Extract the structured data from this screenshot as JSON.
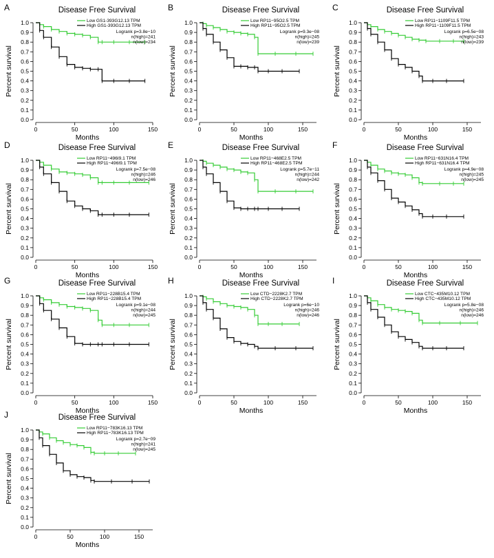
{
  "chart_data": [
    {
      "panel": "A",
      "type": "line",
      "title": "Disease Free Survival",
      "xlabel": "Months",
      "ylabel": "Percent survival",
      "xlim": [
        0,
        150
      ],
      "xticks": [
        0,
        50,
        100,
        150
      ],
      "ylim": [
        0,
        1
      ],
      "yticks": [
        0.0,
        0.1,
        0.2,
        0.3,
        0.4,
        0.5,
        0.6,
        0.7,
        0.8,
        0.9,
        1.0
      ],
      "series": [
        {
          "name": "Low GS1-393G12.13 TPM",
          "color": "#33cc33",
          "x": [
            0,
            5,
            10,
            20,
            30,
            40,
            50,
            60,
            70,
            80,
            85,
            100,
            120,
            140
          ],
          "y": [
            1.0,
            0.98,
            0.96,
            0.93,
            0.91,
            0.89,
            0.88,
            0.87,
            0.85,
            0.8,
            0.8,
            0.8,
            0.8,
            0.8
          ]
        },
        {
          "name": "High GS1-393G12.13 TPM",
          "color": "#000000",
          "x": [
            0,
            5,
            10,
            20,
            30,
            40,
            50,
            60,
            70,
            80,
            85,
            100,
            120,
            140
          ],
          "y": [
            1.0,
            0.92,
            0.85,
            0.75,
            0.65,
            0.57,
            0.54,
            0.53,
            0.52,
            0.52,
            0.4,
            0.4,
            0.4,
            0.4
          ]
        }
      ],
      "annotations": [
        "Logrank p=3.8e−10",
        "n(high)=241",
        "n(low)=234"
      ]
    },
    {
      "panel": "B",
      "type": "line",
      "title": "Disease Free Survival",
      "xlabel": "Months",
      "ylabel": "Percent survival",
      "xlim": [
        0,
        170
      ],
      "xticks": [
        0,
        50,
        100,
        150
      ],
      "ylim": [
        0,
        1
      ],
      "yticks": [
        0.0,
        0.1,
        0.2,
        0.3,
        0.4,
        0.5,
        0.6,
        0.7,
        0.8,
        0.9,
        1.0
      ],
      "series": [
        {
          "name": "Low RP11−95O2.5 TPM",
          "color": "#33cc33",
          "x": [
            0,
            5,
            10,
            20,
            30,
            40,
            50,
            60,
            70,
            80,
            85,
            110,
            140,
            165
          ],
          "y": [
            1.0,
            0.99,
            0.97,
            0.95,
            0.93,
            0.91,
            0.9,
            0.89,
            0.88,
            0.85,
            0.68,
            0.68,
            0.68,
            0.68
          ]
        },
        {
          "name": "High RP11−95O2.5 TPM",
          "color": "#000000",
          "x": [
            0,
            5,
            10,
            20,
            30,
            40,
            50,
            60,
            70,
            80,
            85,
            100,
            120,
            145
          ],
          "y": [
            1.0,
            0.94,
            0.88,
            0.8,
            0.72,
            0.64,
            0.55,
            0.55,
            0.54,
            0.54,
            0.5,
            0.5,
            0.5,
            0.5
          ]
        }
      ],
      "annotations": [
        "Logrank p=9.3e−08",
        "n(high)=245",
        "n(low)=239"
      ]
    },
    {
      "panel": "C",
      "type": "line",
      "title": "Disease Free Survival",
      "xlabel": "Months",
      "ylabel": "Percent survival",
      "xlim": [
        0,
        170
      ],
      "xticks": [
        0,
        50,
        100,
        150
      ],
      "ylim": [
        0,
        1
      ],
      "yticks": [
        0.0,
        0.1,
        0.2,
        0.3,
        0.4,
        0.5,
        0.6,
        0.7,
        0.8,
        0.9,
        1.0
      ],
      "series": [
        {
          "name": "Low RP11−1109F11.5 TPM",
          "color": "#33cc33",
          "x": [
            0,
            5,
            10,
            20,
            30,
            40,
            50,
            60,
            70,
            80,
            90,
            110,
            130,
            145
          ],
          "y": [
            1.0,
            0.98,
            0.96,
            0.93,
            0.91,
            0.89,
            0.87,
            0.85,
            0.83,
            0.82,
            0.81,
            0.81,
            0.81,
            0.81
          ]
        },
        {
          "name": "High RP11−1109F11.5 TPM",
          "color": "#000000",
          "x": [
            0,
            5,
            10,
            20,
            30,
            40,
            50,
            60,
            70,
            80,
            85,
            100,
            120,
            145
          ],
          "y": [
            1.0,
            0.94,
            0.88,
            0.8,
            0.72,
            0.63,
            0.57,
            0.54,
            0.5,
            0.45,
            0.4,
            0.4,
            0.4,
            0.4
          ]
        }
      ],
      "annotations": [
        "Logrank p=6.5e−08",
        "n(high)=243",
        "n(low)=239"
      ]
    },
    {
      "panel": "D",
      "type": "line",
      "title": "Disease Free Survival",
      "xlabel": "Months",
      "ylabel": "Percent survival",
      "xlim": [
        0,
        150
      ],
      "xticks": [
        0,
        50,
        100,
        150
      ],
      "ylim": [
        0,
        1
      ],
      "yticks": [
        0.0,
        0.1,
        0.2,
        0.3,
        0.4,
        0.5,
        0.6,
        0.7,
        0.8,
        0.9,
        1.0
      ],
      "series": [
        {
          "name": "Low RP11−496I9.1 TPM",
          "color": "#33cc33",
          "x": [
            0,
            5,
            10,
            20,
            30,
            40,
            50,
            60,
            70,
            80,
            85,
            100,
            120,
            145
          ],
          "y": [
            1.0,
            0.98,
            0.95,
            0.91,
            0.88,
            0.87,
            0.86,
            0.85,
            0.82,
            0.77,
            0.77,
            0.77,
            0.77,
            0.77
          ]
        },
        {
          "name": "High RP11−496I9.1 TPM",
          "color": "#000000",
          "x": [
            0,
            5,
            10,
            20,
            30,
            40,
            50,
            60,
            70,
            80,
            85,
            100,
            120,
            145
          ],
          "y": [
            1.0,
            0.93,
            0.86,
            0.77,
            0.68,
            0.58,
            0.53,
            0.5,
            0.48,
            0.44,
            0.44,
            0.44,
            0.44,
            0.44
          ]
        }
      ],
      "annotations": [
        "Logrank p=7.5e−08",
        "n(high)=246",
        "n(low)=246"
      ]
    },
    {
      "panel": "E",
      "type": "line",
      "title": "Disease Free Survival",
      "xlabel": "Months",
      "ylabel": "Percent survival",
      "xlim": [
        0,
        170
      ],
      "xticks": [
        0,
        50,
        100,
        150
      ],
      "ylim": [
        0,
        1
      ],
      "yticks": [
        0.0,
        0.1,
        0.2,
        0.3,
        0.4,
        0.5,
        0.6,
        0.7,
        0.8,
        0.9,
        1.0
      ],
      "series": [
        {
          "name": "Low RP11−468E2.5 TPM",
          "color": "#33cc33",
          "x": [
            0,
            5,
            10,
            20,
            30,
            40,
            50,
            60,
            70,
            80,
            85,
            110,
            140,
            165
          ],
          "y": [
            1.0,
            0.99,
            0.97,
            0.95,
            0.93,
            0.91,
            0.9,
            0.88,
            0.87,
            0.8,
            0.68,
            0.68,
            0.68,
            0.68
          ]
        },
        {
          "name": "High RP11−468E2.5 TPM",
          "color": "#000000",
          "x": [
            0,
            5,
            10,
            20,
            30,
            40,
            50,
            60,
            70,
            80,
            85,
            100,
            120,
            145
          ],
          "y": [
            1.0,
            0.93,
            0.86,
            0.77,
            0.68,
            0.58,
            0.51,
            0.5,
            0.5,
            0.5,
            0.5,
            0.5,
            0.5,
            0.5
          ]
        }
      ],
      "annotations": [
        "Logrank p=5.7e−11",
        "n(high)=244",
        "n(low)=242"
      ]
    },
    {
      "panel": "F",
      "type": "line",
      "title": "Disease Free Survival",
      "xlabel": "Months",
      "ylabel": "Percent survival",
      "xlim": [
        0,
        170
      ],
      "xticks": [
        0,
        50,
        100,
        150
      ],
      "ylim": [
        0,
        1
      ],
      "yticks": [
        0.0,
        0.1,
        0.2,
        0.3,
        0.4,
        0.5,
        0.6,
        0.7,
        0.8,
        0.9,
        1.0
      ],
      "series": [
        {
          "name": "Low RP11−631N16.4 TPM",
          "color": "#33cc33",
          "x": [
            0,
            5,
            10,
            20,
            30,
            40,
            50,
            60,
            70,
            80,
            85,
            110,
            130,
            145
          ],
          "y": [
            1.0,
            0.98,
            0.95,
            0.91,
            0.89,
            0.87,
            0.86,
            0.85,
            0.82,
            0.77,
            0.76,
            0.76,
            0.76,
            0.76
          ]
        },
        {
          "name": "High RP11−631N16.4 TPM",
          "color": "#000000",
          "x": [
            0,
            5,
            10,
            20,
            30,
            40,
            50,
            60,
            70,
            80,
            85,
            100,
            120,
            145
          ],
          "y": [
            1.0,
            0.93,
            0.87,
            0.79,
            0.7,
            0.61,
            0.57,
            0.53,
            0.49,
            0.45,
            0.42,
            0.42,
            0.42,
            0.42
          ]
        }
      ],
      "annotations": [
        "Logrank p=4.9e−08",
        "n(high)=245",
        "n(low)=245"
      ]
    },
    {
      "panel": "G",
      "type": "line",
      "title": "Disease Free Survival",
      "xlabel": "Months",
      "ylabel": "Percent survival",
      "xlim": [
        0,
        150
      ],
      "xticks": [
        0,
        50,
        100,
        150
      ],
      "ylim": [
        0,
        1
      ],
      "yticks": [
        0.0,
        0.1,
        0.2,
        0.3,
        0.4,
        0.5,
        0.6,
        0.7,
        0.8,
        0.9,
        1.0
      ],
      "series": [
        {
          "name": "Low RP11−228B15.4 TPM",
          "color": "#33cc33",
          "x": [
            0,
            5,
            10,
            20,
            30,
            40,
            50,
            60,
            70,
            80,
            85,
            100,
            120,
            145
          ],
          "y": [
            1.0,
            0.98,
            0.96,
            0.93,
            0.91,
            0.89,
            0.88,
            0.87,
            0.85,
            0.75,
            0.7,
            0.7,
            0.7,
            0.7
          ]
        },
        {
          "name": "High RP11−228B15.4 TPM",
          "color": "#000000",
          "x": [
            0,
            5,
            10,
            20,
            30,
            40,
            50,
            60,
            70,
            80,
            85,
            100,
            120,
            145
          ],
          "y": [
            1.0,
            0.92,
            0.85,
            0.76,
            0.67,
            0.58,
            0.51,
            0.5,
            0.5,
            0.5,
            0.5,
            0.5,
            0.5,
            0.5
          ]
        }
      ],
      "annotations": [
        "Logrank p=9.1e−08",
        "n(high)=244",
        "n(low)=245"
      ]
    },
    {
      "panel": "H",
      "type": "line",
      "title": "Disease Free Survival",
      "xlabel": "Months",
      "ylabel": "Percent survival",
      "xlim": [
        0,
        170
      ],
      "xticks": [
        0,
        50,
        100,
        150
      ],
      "ylim": [
        0,
        1
      ],
      "yticks": [
        0.0,
        0.1,
        0.2,
        0.3,
        0.4,
        0.5,
        0.6,
        0.7,
        0.8,
        0.9,
        1.0
      ],
      "series": [
        {
          "name": "Low CTD−2228K2.7 TPM",
          "color": "#33cc33",
          "x": [
            0,
            5,
            10,
            20,
            30,
            40,
            50,
            60,
            70,
            80,
            85,
            100,
            120,
            145
          ],
          "y": [
            1.0,
            0.99,
            0.97,
            0.94,
            0.92,
            0.9,
            0.89,
            0.88,
            0.86,
            0.8,
            0.71,
            0.71,
            0.71,
            0.71
          ]
        },
        {
          "name": "High CTD−2228K2.7 TPM",
          "color": "#000000",
          "x": [
            0,
            5,
            10,
            20,
            30,
            40,
            50,
            60,
            70,
            80,
            85,
            110,
            140,
            165
          ],
          "y": [
            1.0,
            0.93,
            0.86,
            0.77,
            0.66,
            0.57,
            0.53,
            0.51,
            0.5,
            0.48,
            0.46,
            0.46,
            0.46,
            0.46
          ]
        }
      ],
      "annotations": [
        "Logrank p=6e−10",
        "n(high)=246",
        "n(low)=246"
      ]
    },
    {
      "panel": "I",
      "type": "line",
      "title": "Disease Free Survival",
      "xlabel": "Months",
      "ylabel": "Percent survival",
      "xlim": [
        0,
        170
      ],
      "xticks": [
        0,
        50,
        100,
        150
      ],
      "ylim": [
        0,
        1
      ],
      "yticks": [
        0.0,
        0.1,
        0.2,
        0.3,
        0.4,
        0.5,
        0.6,
        0.7,
        0.8,
        0.9,
        1.0
      ],
      "series": [
        {
          "name": "Low CTC−435M10.12 TPM",
          "color": "#33cc33",
          "x": [
            0,
            5,
            10,
            20,
            30,
            40,
            50,
            60,
            70,
            80,
            85,
            110,
            140,
            165
          ],
          "y": [
            1.0,
            0.98,
            0.95,
            0.91,
            0.88,
            0.86,
            0.85,
            0.84,
            0.82,
            0.75,
            0.72,
            0.72,
            0.72,
            0.72
          ]
        },
        {
          "name": "High CTC−435M10.12 TPM",
          "color": "#000000",
          "x": [
            0,
            5,
            10,
            20,
            30,
            40,
            50,
            60,
            70,
            80,
            85,
            100,
            120,
            145
          ],
          "y": [
            1.0,
            0.93,
            0.86,
            0.78,
            0.7,
            0.63,
            0.58,
            0.55,
            0.52,
            0.48,
            0.46,
            0.46,
            0.46,
            0.46
          ]
        }
      ],
      "annotations": [
        "Logrank p=5.8e−08",
        "n(high)=246",
        "n(low)=246"
      ]
    },
    {
      "panel": "J",
      "type": "line",
      "title": "Disease Free Survival",
      "xlabel": "Months",
      "ylabel": "Percent survival",
      "xlim": [
        0,
        170
      ],
      "xticks": [
        0,
        50,
        100,
        150
      ],
      "ylim": [
        0,
        1
      ],
      "yticks": [
        0.0,
        0.1,
        0.2,
        0.3,
        0.4,
        0.5,
        0.6,
        0.7,
        0.8,
        0.9,
        1.0
      ],
      "series": [
        {
          "name": "Low RP11−783K16.13 TPM",
          "color": "#33cc33",
          "x": [
            0,
            5,
            10,
            20,
            30,
            40,
            50,
            60,
            70,
            80,
            85,
            100,
            120,
            145
          ],
          "y": [
            1.0,
            0.98,
            0.96,
            0.92,
            0.89,
            0.87,
            0.85,
            0.84,
            0.82,
            0.77,
            0.76,
            0.76,
            0.76,
            0.76
          ]
        },
        {
          "name": "High RP11−783K16.13 TPM",
          "color": "#000000",
          "x": [
            0,
            5,
            10,
            20,
            30,
            40,
            50,
            60,
            70,
            80,
            85,
            110,
            140,
            165
          ],
          "y": [
            1.0,
            0.92,
            0.84,
            0.75,
            0.66,
            0.58,
            0.54,
            0.52,
            0.51,
            0.48,
            0.47,
            0.47,
            0.47,
            0.47
          ]
        }
      ],
      "annotations": [
        "Logrank p=2.7e−09",
        "n(high)=241",
        "n(low)=245"
      ]
    }
  ]
}
